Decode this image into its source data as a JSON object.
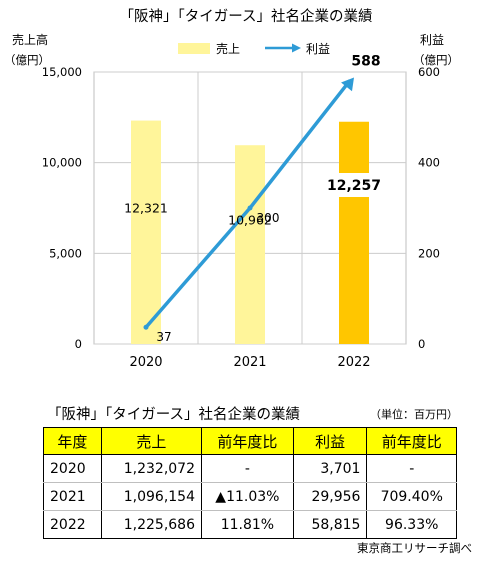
{
  "chart_data": {
    "type": "bar+line",
    "title": "「阪神」「タイガース」社名企業の業績",
    "categories": [
      "2020",
      "2021",
      "2022"
    ],
    "series": [
      {
        "name": "売上",
        "type": "bar",
        "axis": "left",
        "values": [
          12321,
          10962,
          12257
        ],
        "data_labels": [
          "12,321",
          "10,962",
          "12,257"
        ]
      },
      {
        "name": "利益",
        "type": "line",
        "axis": "right",
        "values": [
          37,
          300,
          588
        ],
        "data_labels": [
          "37",
          "300",
          "588"
        ]
      }
    ],
    "y_left": {
      "label": "売上高",
      "unit": "（億円）",
      "ylim": [
        0,
        15000
      ],
      "ticks": [
        "0",
        "5,000",
        "10,000",
        "15,000"
      ]
    },
    "y_right": {
      "label": "利益",
      "unit": "（億円）",
      "ylim": [
        0,
        600
      ],
      "ticks": [
        "0",
        "200",
        "400",
        "600"
      ]
    },
    "grid": true,
    "legend_position": "top",
    "colors": {
      "bar_light": "#FFF59A",
      "bar_highlight": "#FFC600",
      "line": "#2E9BD6",
      "grid": "#cccccc"
    }
  },
  "table": {
    "title": "「阪神」「タイガース」社名企業の業績",
    "unit": "（単位：百万円）",
    "headers": [
      "年度",
      "売上",
      "前年度比",
      "利益",
      "前年度比"
    ],
    "rows": [
      [
        "2020",
        "1,232,072",
        "-",
        "3,701",
        "-"
      ],
      [
        "2021",
        "1,096,154",
        "▲11.03%",
        "29,956",
        "709.40%"
      ],
      [
        "2022",
        "1,225,686",
        "11.81%",
        "58,815",
        "96.33%"
      ]
    ]
  },
  "source": "東京商工リサーチ調べ"
}
